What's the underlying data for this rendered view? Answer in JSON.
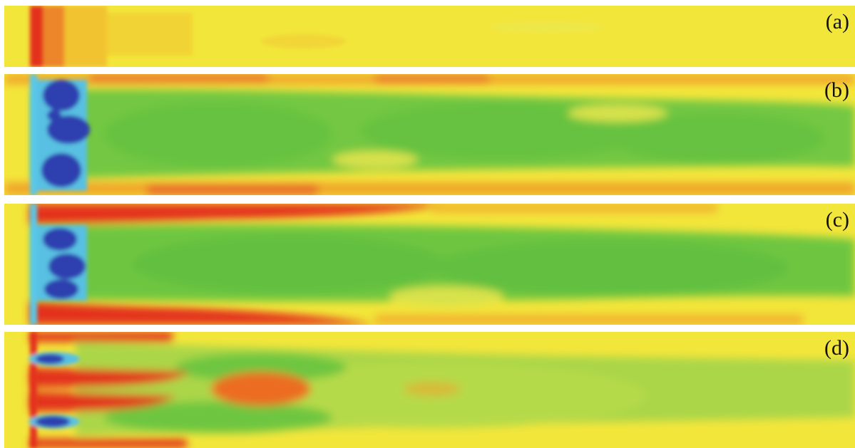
{
  "panels": [
    {
      "id": "a",
      "label": "(a)"
    },
    {
      "id": "b",
      "label": "(b)"
    },
    {
      "id": "c",
      "label": "(c)"
    },
    {
      "id": "d",
      "label": "(d)"
    }
  ],
  "colors": {
    "background": "#f2e63a",
    "red": "#e3301f",
    "orange": "#f0a52b",
    "green": "#6ec640",
    "light_blue": "#55c3e6",
    "dark_blue": "#2e3fb0"
  }
}
